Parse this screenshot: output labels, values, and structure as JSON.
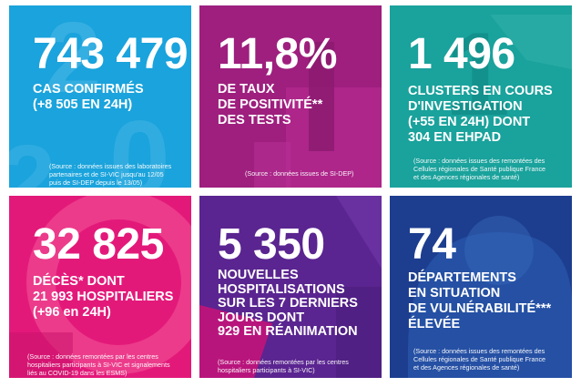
{
  "tiles": [
    {
      "value": "743 479",
      "label": "CAS CONFIRMÉS\n(+8 505 EN 24H)",
      "source": "(Source : données issues des laboratoires\npartenaires et de SI-VIC jusqu'au 12/05\npuis de SI-DEP depuis le 13/05)",
      "color": "#1aa3dc"
    },
    {
      "value": "11,8%",
      "label": "DE TAUX\nDE POSITIVITÉ**\nDES TESTS",
      "source": "(Source : données issues de SI-DEP)",
      "color": "#9e1f7e"
    },
    {
      "value": "1 496",
      "label": "CLUSTERS EN COURS\nD'INVESTIGATION\n(+55 EN 24H) DONT\n304 EN EHPAD",
      "source": "(Source : données issues des remontées des\nCellules régionales de Santé publique France\net des Agences régionales de santé)",
      "color": "#1aa29c"
    },
    {
      "value": "32 825",
      "label": "DÉCÈS* DONT\n21 993 HOSPITALIERS\n(+96 en 24H)",
      "source": "(Source : données remontées par les centres\nhospitaliers participants à SI-VIC et signalements\nliés au COVID-19 dans les ESMS)",
      "color": "#e3197a"
    },
    {
      "value": "5 350",
      "label": "NOUVELLES\nHOSPITALISATIONS\nSUR LES 7 DERNIERS\nJOURS DONT\n929 EN RÉANIMATION",
      "source": "(Source : données remontées par les centres\nhospitaliers participants à SI-VIC)",
      "color": "#5a2590"
    },
    {
      "value": "74",
      "label": "DÉPARTEMENTS\nEN SITUATION\nDE VULNÉRABILITÉ***\nÉLEVÉE",
      "source": "(Source : données issues des remontées des\nCellules régionales de Santé publique France\net des Agences régionales de santé)",
      "color": "#1d3e8f"
    }
  ]
}
